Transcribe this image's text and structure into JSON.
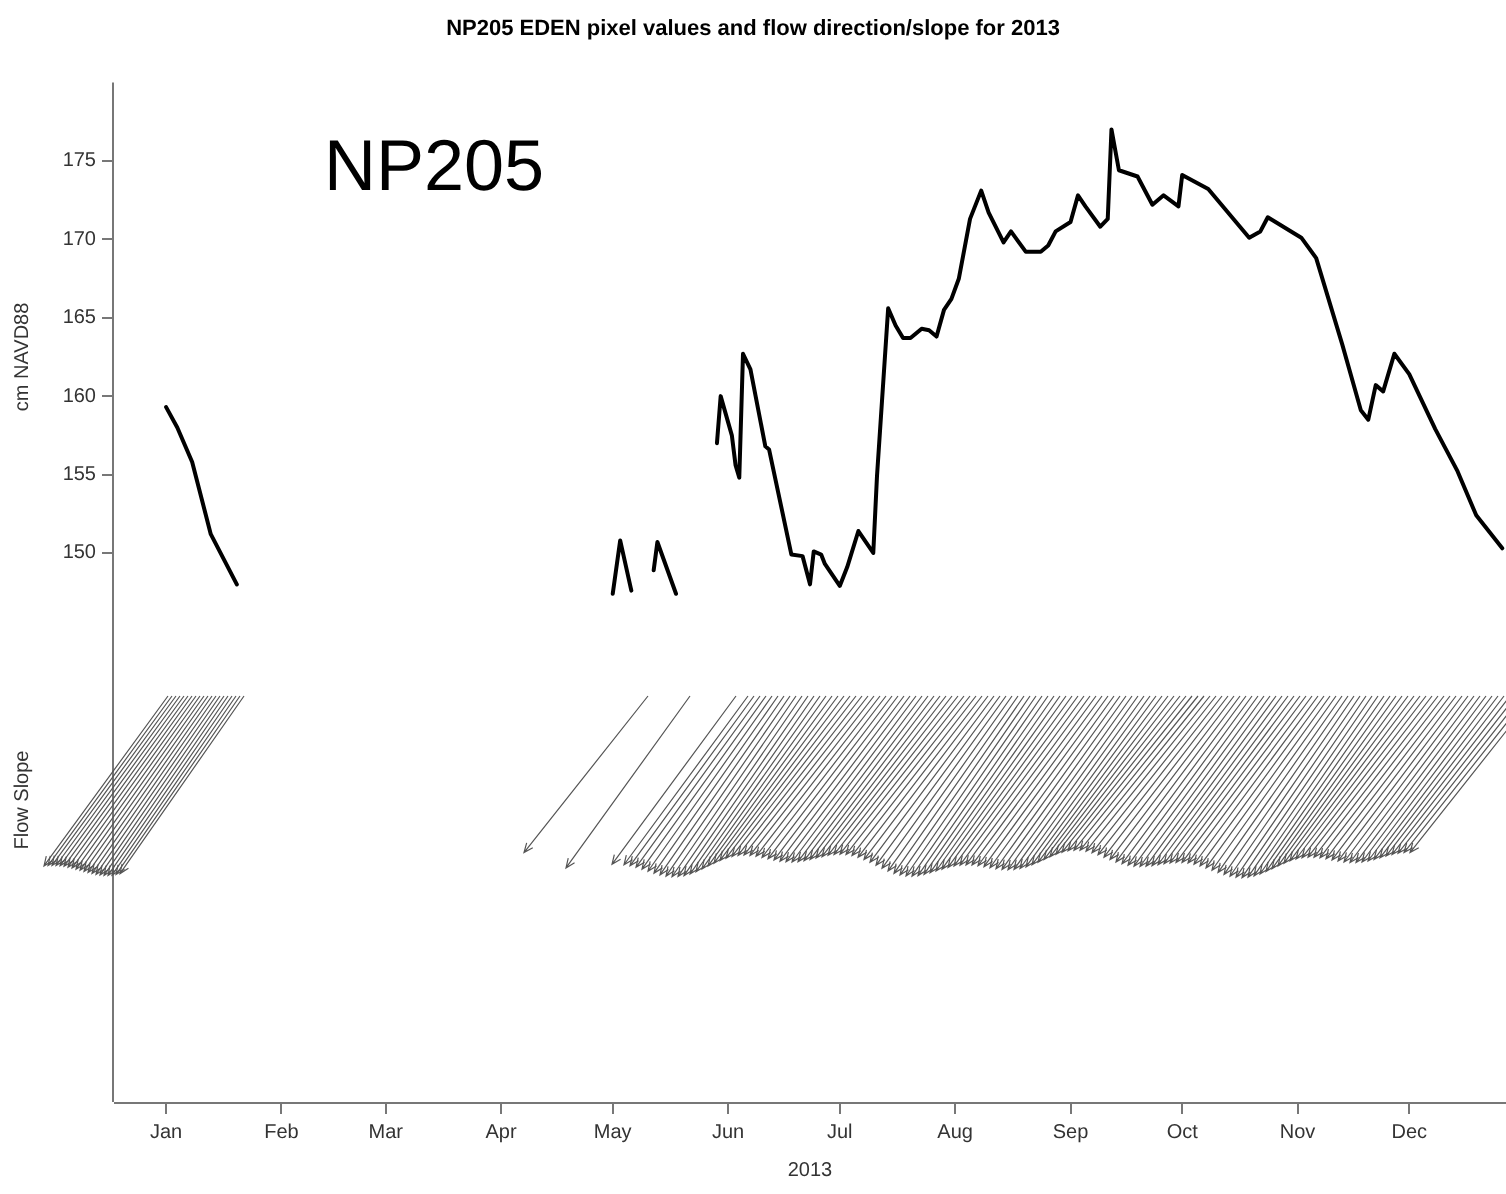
{
  "chart_data": {
    "type": "line",
    "title": "NP205 EDEN pixel values and flow direction/slope for 2013",
    "xlabel": "2013",
    "ylabel": "cm NAVD88",
    "annotations": [
      "NP205",
      "Flow Slope"
    ],
    "x": [
      "2013-01-01",
      "2013-01-04",
      "2013-01-08",
      "2013-01-13",
      "2013-01-20",
      "2013-03-01",
      "2013-05-01",
      "2013-05-03",
      "2013-05-06",
      "2013-05-09",
      "2013-05-12",
      "2013-05-13",
      "2013-05-18",
      "2013-05-23",
      "2013-05-29",
      "2013-05-30",
      "2013-06-02",
      "2013-06-03",
      "2013-06-04",
      "2013-06-05",
      "2013-06-07",
      "2013-06-11",
      "2013-06-12",
      "2013-06-18",
      "2013-06-21",
      "2013-06-23",
      "2013-06-24",
      "2013-06-26",
      "2013-06-27",
      "2013-07-01",
      "2013-07-03",
      "2013-07-06",
      "2013-07-10",
      "2013-07-11",
      "2013-07-14",
      "2013-07-16",
      "2013-07-18",
      "2013-07-20",
      "2013-07-23",
      "2013-07-25",
      "2013-07-27",
      "2013-07-29",
      "2013-07-31",
      "2013-08-02",
      "2013-08-05",
      "2013-08-08",
      "2013-08-10",
      "2013-08-14",
      "2013-08-16",
      "2013-08-20",
      "2013-08-24",
      "2013-08-26",
      "2013-08-28",
      "2013-09-01",
      "2013-09-03",
      "2013-09-05",
      "2013-09-09",
      "2013-09-11",
      "2013-09-12",
      "2013-09-14",
      "2013-09-19",
      "2013-09-23",
      "2013-09-26",
      "2013-09-30",
      "2013-10-01",
      "2013-10-08",
      "2013-10-19",
      "2013-10-22",
      "2013-10-24",
      "2013-11-02",
      "2013-11-06",
      "2013-11-13",
      "2013-11-18",
      "2013-11-20",
      "2013-11-22",
      "2013-11-24",
      "2013-11-27",
      "2013-12-01",
      "2013-12-08",
      "2013-12-14",
      "2013-12-19",
      "2013-12-26"
    ],
    "series": [
      {
        "color": "#000000",
        "values": [
          159.3,
          158.0,
          155.8,
          151.2,
          148.0,
          null,
          147.4,
          150.8,
          147.6,
          null,
          148.9,
          150.7,
          147.4,
          null,
          157.0,
          160.0,
          157.5,
          155.6,
          154.8,
          162.7,
          161.7,
          156.8,
          156.6,
          149.9,
          149.8,
          148.0,
          150.1,
          149.9,
          149.3,
          147.9,
          149.1,
          151.4,
          150.0,
          154.9,
          165.6,
          164.5,
          163.7,
          163.7,
          164.3,
          164.2,
          163.8,
          165.5,
          166.2,
          167.5,
          171.3,
          173.1,
          171.7,
          169.8,
          170.5,
          169.2,
          169.2,
          169.6,
          170.5,
          171.1,
          172.8,
          172.1,
          170.8,
          171.3,
          177.0,
          174.4,
          174.0,
          172.2,
          172.8,
          172.1,
          174.1,
          173.2,
          170.1,
          170.5,
          171.4,
          170.1,
          168.8,
          163.3,
          159.1,
          158.5,
          160.7,
          160.3,
          162.7,
          161.4,
          157.9,
          155.2,
          152.4,
          150.3
        ]
      }
    ],
    "xlim": [
      "2012-12-18",
      "2013-12-27"
    ],
    "xticks": [
      {
        "value": "2013-01-01",
        "label": "Jan"
      },
      {
        "value": "2013-02-01",
        "label": "Feb"
      },
      {
        "value": "2013-03-01",
        "label": "Mar"
      },
      {
        "value": "2013-04-01",
        "label": "Apr"
      },
      {
        "value": "2013-05-01",
        "label": "May"
      },
      {
        "value": "2013-06-01",
        "label": "Jun"
      },
      {
        "value": "2013-07-01",
        "label": "Jul"
      },
      {
        "value": "2013-08-01",
        "label": "Aug"
      },
      {
        "value": "2013-09-01",
        "label": "Sep"
      },
      {
        "value": "2013-10-01",
        "label": "Oct"
      },
      {
        "value": "2013-11-01",
        "label": "Nov"
      },
      {
        "value": "2013-12-01",
        "label": "Dec"
      }
    ],
    "ylim": [
      115,
      180
    ],
    "yticks": [
      150,
      155,
      160,
      165,
      170,
      175
    ],
    "marker": "none",
    "line_style": "solid",
    "grid": false,
    "legend": false
  }
}
